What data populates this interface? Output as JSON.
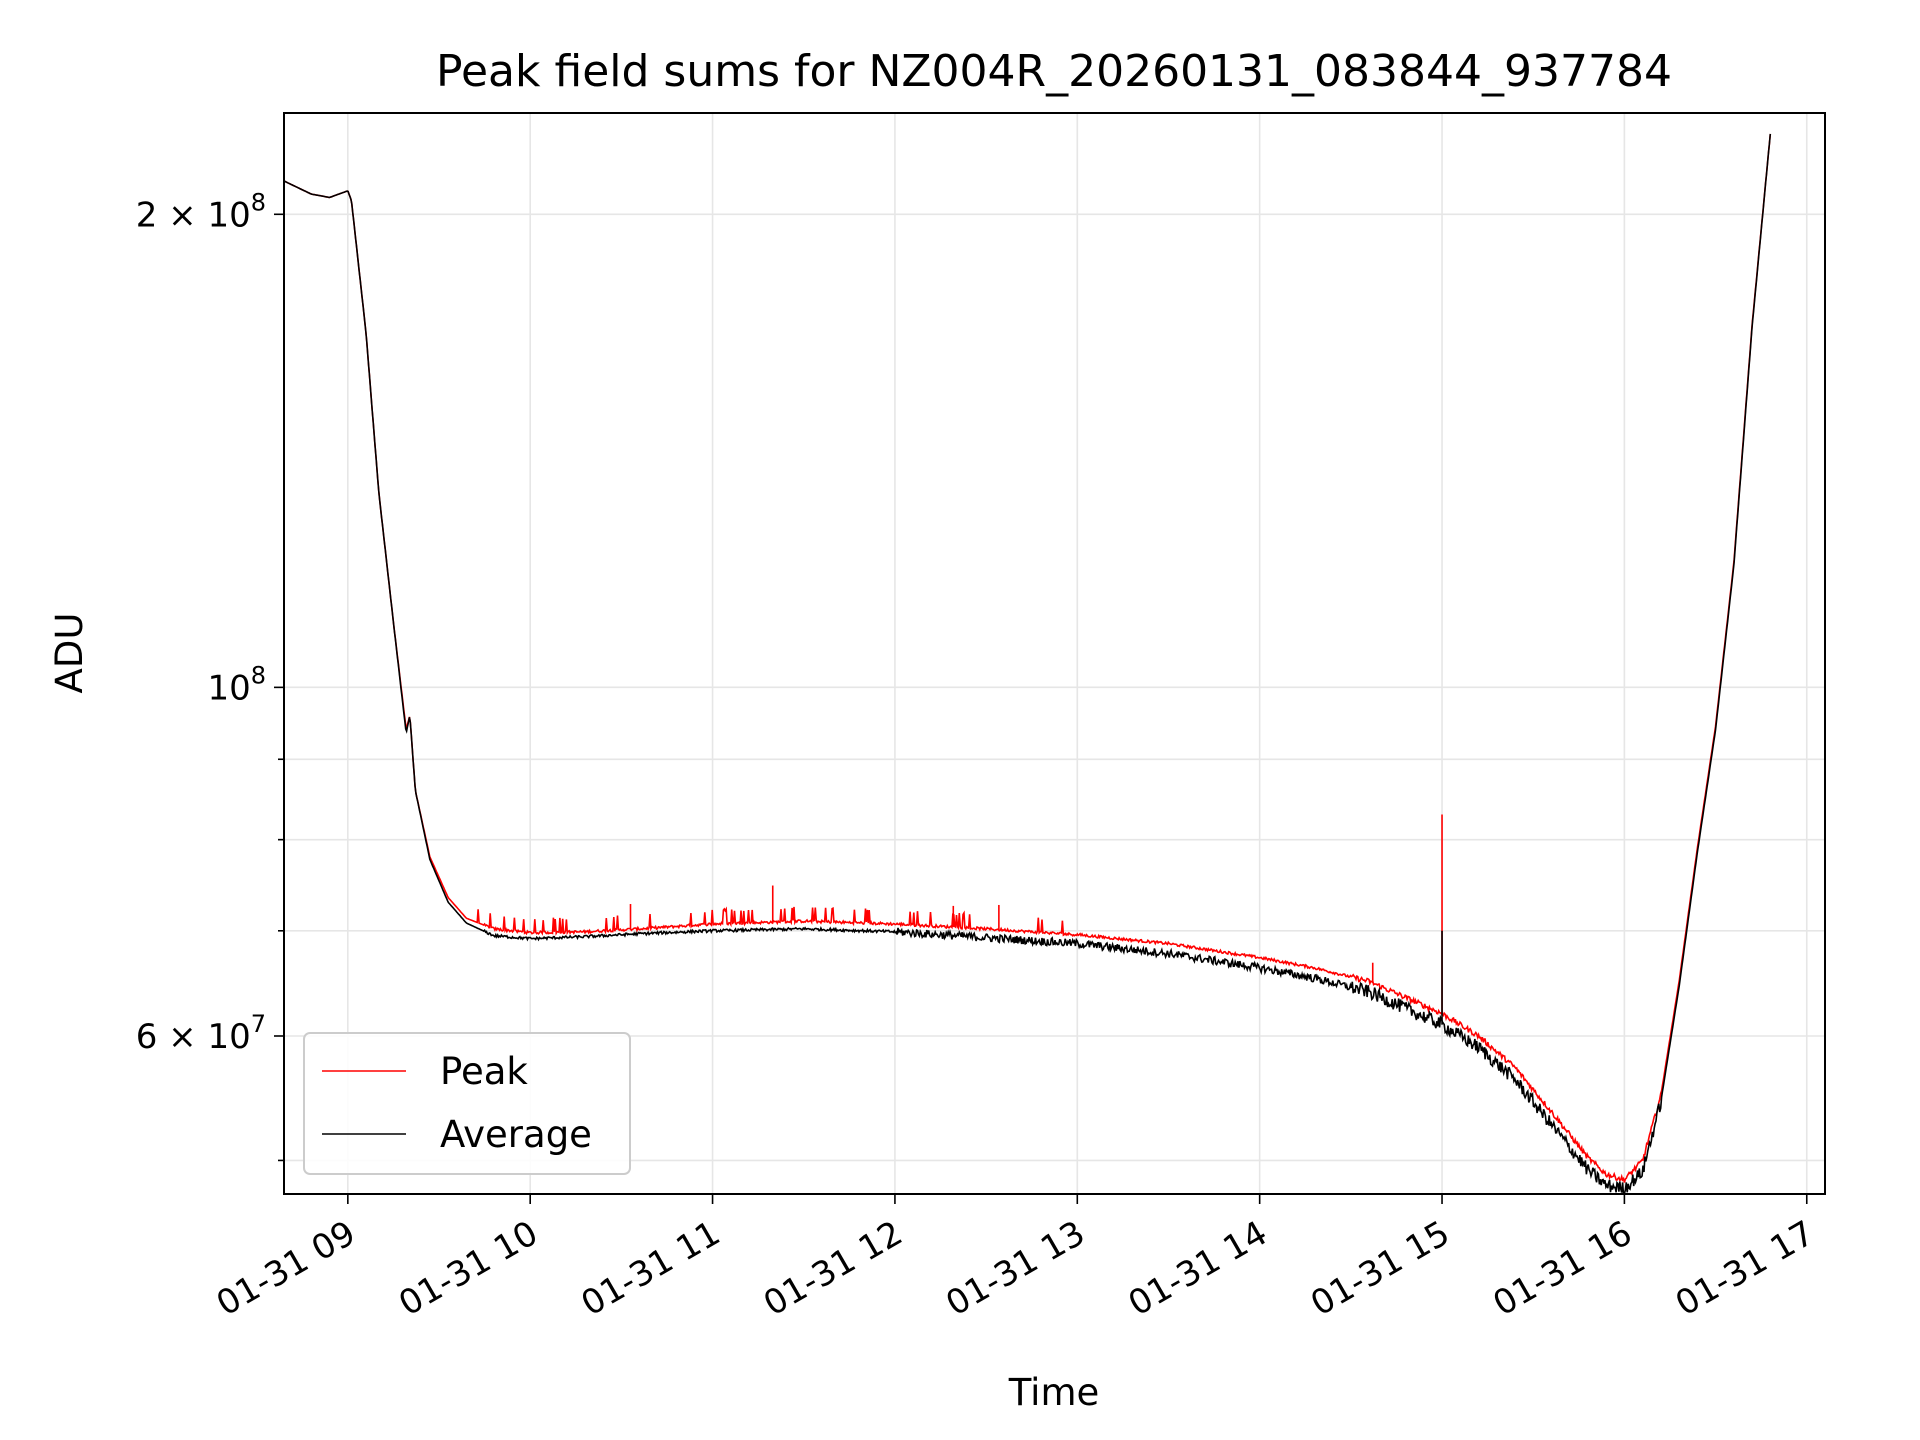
{
  "chart_data": {
    "type": "line",
    "title": "Peak field sums for NZ004R_20260131_083844_937784",
    "xlabel": "Time",
    "ylabel": "ADU",
    "yscale": "log",
    "xlim_hours": [
      8.65,
      17.1
    ],
    "ylim": [
      47600000,
      232000000
    ],
    "grid": true,
    "legend_location": "lower-left",
    "x_ticks": [
      {
        "value": 9,
        "label": "01-31 09"
      },
      {
        "value": 10,
        "label": "01-31 10"
      },
      {
        "value": 11,
        "label": "01-31 11"
      },
      {
        "value": 12,
        "label": "01-31 12"
      },
      {
        "value": 13,
        "label": "01-31 13"
      },
      {
        "value": 14,
        "label": "01-31 14"
      },
      {
        "value": 15,
        "label": "01-31 15"
      },
      {
        "value": 16,
        "label": "01-31 16"
      },
      {
        "value": 17,
        "label": "01-31 17"
      }
    ],
    "y_major_ticks": [
      {
        "value": 60000000,
        "mantissa": "6",
        "times": "×",
        "base": "10",
        "exponent": "7"
      },
      {
        "value": 100000000,
        "mantissa": "",
        "times": "",
        "base": "10",
        "exponent": "8"
      },
      {
        "value": 200000000,
        "mantissa": "2",
        "times": "×",
        "base": "10",
        "exponent": "8"
      }
    ],
    "y_minor_ticks": [
      50000000,
      70000000,
      80000000,
      90000000
    ],
    "series": [
      {
        "name": "Peak",
        "color": "#ff0000",
        "x_hours": [
          8.65,
          8.8,
          8.9,
          9.0,
          9.02,
          9.1,
          9.17,
          9.25,
          9.32,
          9.34,
          9.37,
          9.45,
          9.55,
          9.65,
          9.8,
          10.0,
          10.3,
          10.6,
          11.0,
          11.5,
          12.0,
          12.5,
          13.0,
          13.5,
          14.0,
          14.3,
          14.6,
          15.0,
          15.2,
          15.4,
          15.6,
          15.8,
          15.9,
          16.0,
          16.1,
          16.2,
          16.3,
          16.4,
          16.5,
          16.6,
          16.7,
          16.8
        ],
        "values": [
          210000000,
          206000000,
          205000000,
          207000000,
          204000000,
          168000000,
          133000000,
          110000000,
          94000000,
          96000000,
          86000000,
          78000000,
          73500000,
          71300000,
          70200000,
          69800000,
          69900000,
          70200000,
          70700000,
          71000000,
          70700000,
          70200000,
          69600000,
          68700000,
          67300000,
          66300000,
          65000000,
          62000000,
          60000000,
          57300000,
          53700000,
          50200000,
          49000000,
          48600000,
          50000000,
          55000000,
          65000000,
          79000000,
          94500000,
          120000000,
          170000000,
          225000000
        ],
        "spikes": [
          {
            "x_hours": 10.55,
            "value": 72800000
          },
          {
            "x_hours": 11.33,
            "value": 74800000
          },
          {
            "x_hours": 12.32,
            "value": 72600000
          },
          {
            "x_hours": 12.57,
            "value": 72700000
          },
          {
            "x_hours": 14.62,
            "value": 66800000
          },
          {
            "x_hours": 15.0,
            "value": 83000000
          }
        ]
      },
      {
        "name": "Average",
        "color": "#000000",
        "x_hours": [
          8.65,
          8.8,
          8.9,
          9.0,
          9.02,
          9.1,
          9.17,
          9.25,
          9.32,
          9.34,
          9.37,
          9.45,
          9.55,
          9.65,
          9.8,
          10.0,
          10.3,
          10.6,
          11.0,
          11.5,
          12.0,
          12.5,
          13.0,
          13.5,
          14.0,
          14.3,
          14.6,
          15.0,
          15.2,
          15.4,
          15.6,
          15.8,
          15.9,
          16.0,
          16.1,
          16.2,
          16.3,
          16.4,
          16.5,
          16.6,
          16.7,
          16.8
        ],
        "values": [
          210000000,
          206000000,
          205000000,
          207000000,
          204000000,
          168000000,
          133000000,
          110000000,
          93500000,
          96000000,
          86000000,
          77700000,
          73000000,
          70800000,
          69500000,
          69200000,
          69400000,
          69700000,
          70000000,
          70200000,
          69900000,
          69300000,
          68700000,
          67700000,
          66300000,
          65300000,
          64000000,
          61000000,
          59000000,
          56300000,
          52700000,
          49300000,
          48200000,
          48000000,
          49200000,
          54500000,
          64500000,
          78500000,
          94000000,
          119500000,
          169500000,
          225000000
        ],
        "spikes": [
          {
            "x_hours": 15.0,
            "value": 70000000
          }
        ]
      }
    ]
  }
}
